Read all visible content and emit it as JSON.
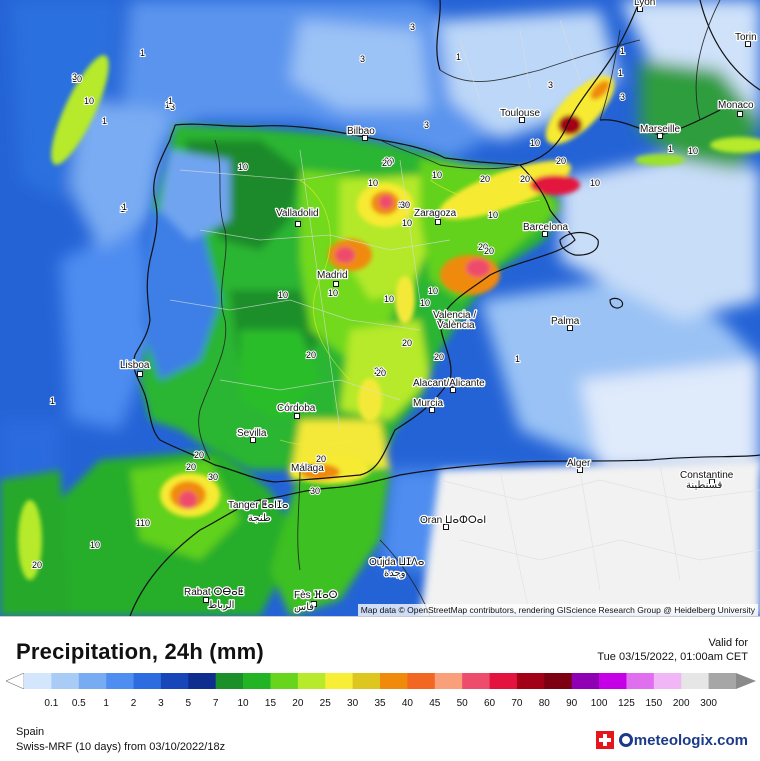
{
  "title": "Precipitation, 24h (mm)",
  "valid_label": "Valid for",
  "valid_time": "Tue 03/15/2022, 01:00am CET",
  "region": "Spain",
  "model_run": "Swiss-MRF (10 days)  from  03/10/2022/18z",
  "logo_text": "meteologix.com",
  "attribution": "Map data © OpenStreetMap contributors, rendering GIScience Research Group @ Heidelberg University",
  "legend": {
    "labels": [
      "0.1",
      "0.5",
      "1",
      "2",
      "3",
      "5",
      "7",
      "10",
      "15",
      "20",
      "25",
      "30",
      "35",
      "40",
      "45",
      "50",
      "60",
      "70",
      "80",
      "90",
      "100",
      "125",
      "150",
      "200",
      "300"
    ],
    "colors": [
      "#d3e6fb",
      "#a9ccf7",
      "#78acf2",
      "#4f8ef0",
      "#2d6be0",
      "#1746b8",
      "#0f2d8e",
      "#1a8f2a",
      "#22b424",
      "#66d51c",
      "#b6ea2a",
      "#f8ee35",
      "#ddc61d",
      "#f08a0b",
      "#f26722",
      "#f9a07a",
      "#ee4c6c",
      "#e3123e",
      "#a10016",
      "#7c0012",
      "#8f00b5",
      "#c500e6",
      "#e06ff0",
      "#f0b6f6",
      "#e6e6e6",
      "#a6a6a6"
    ]
  },
  "cities": [
    {
      "name": "Lyon"
    },
    {
      "name": "Torin"
    },
    {
      "name": "Monaco"
    },
    {
      "name": "Toulouse"
    },
    {
      "name": "Marseille"
    },
    {
      "name": "Bilbao"
    },
    {
      "name": "Valladolid"
    },
    {
      "name": "Zaragoza"
    },
    {
      "name": "Barcelona"
    },
    {
      "name": "Madrid"
    },
    {
      "name": "Valencia /"
    },
    {
      "name": "València"
    },
    {
      "name": "Palma"
    },
    {
      "name": "Lisboa"
    },
    {
      "name": "Alacant/Alicante"
    },
    {
      "name": "Córdoba"
    },
    {
      "name": "Murcia"
    },
    {
      "name": "Sevilla"
    },
    {
      "name": "Alger"
    },
    {
      "name": "Constantine"
    },
    {
      "name": "قسنطينة"
    },
    {
      "name": "Málaga"
    },
    {
      "name": "Tanger ⵟⴰⵏⵊⴰ"
    },
    {
      "name": "طنجة"
    },
    {
      "name": "Oran ⵡⴰⵀⵔⴰⵏ"
    },
    {
      "name": "Oujda ⵡⵊⴷⴰ"
    },
    {
      "name": "وجدة"
    },
    {
      "name": "Rabat ⵔⴱⴰⵟ"
    },
    {
      "name": "الرباط"
    },
    {
      "name": "Fès ⴼⴰⵙ"
    },
    {
      "name": "فاس"
    }
  ],
  "contour_labels": [
    "1",
    "3",
    "10",
    "1",
    "1",
    "3",
    "3",
    "1",
    "10",
    "3",
    "1",
    "1",
    "20",
    "10",
    "20",
    "20",
    "30",
    "10",
    "20",
    "10",
    "10",
    "20",
    "30",
    "20",
    "10",
    "10",
    "20",
    "10",
    "10",
    "1",
    "10",
    "20",
    "20",
    "30",
    "20",
    "1",
    "10",
    "10",
    "20",
    "20",
    "30",
    "20",
    "1",
    "1",
    "3",
    "1",
    "3",
    "1",
    "10",
    "20",
    "10",
    "10",
    "20",
    "20",
    "3",
    "10",
    "10"
  ]
}
